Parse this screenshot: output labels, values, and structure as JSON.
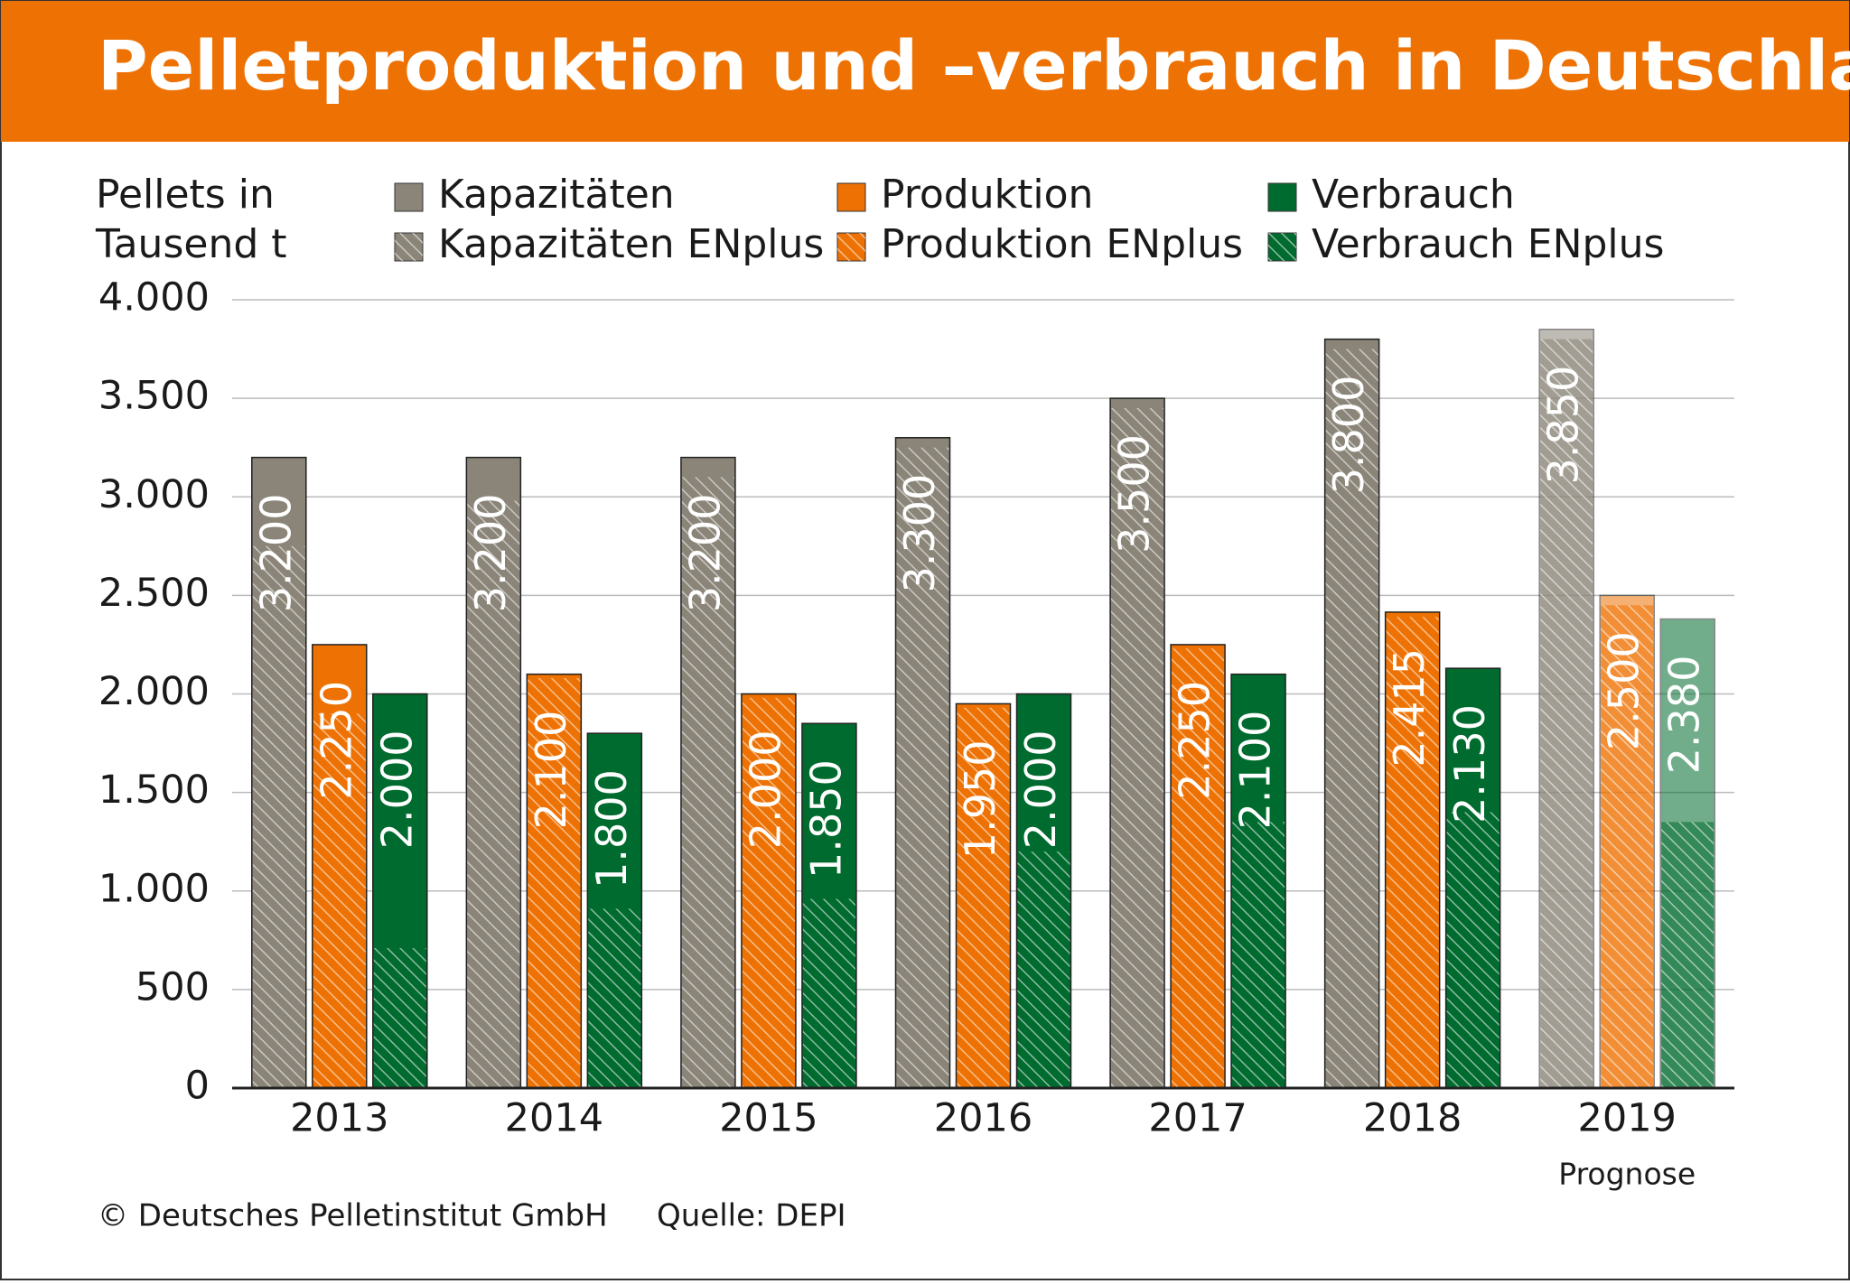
{
  "chart_data": {
    "type": "bar",
    "title": "Pelletproduktion und –verbrauch in Deutschland",
    "ylabel": [
      "Pellets in",
      "Tausend t"
    ],
    "categories": [
      "2013",
      "2014",
      "2015",
      "2016",
      "2017",
      "2018",
      "2019"
    ],
    "annotations": [
      {
        "category": "2019",
        "text": "Prognose"
      }
    ],
    "series": [
      {
        "name": "Kapazitäten",
        "color": "#8a8578",
        "values": [
          3200,
          3200,
          3200,
          3300,
          3500,
          3800,
          3850
        ],
        "value_labels": [
          "3.200",
          "3.200",
          "3.200",
          "3.300",
          "3.500",
          "3.800",
          "3.850"
        ]
      },
      {
        "name": "Kapazitäten ENplus",
        "color": "#8a8578",
        "hatch": true,
        "of": "Kapazitäten",
        "values": [
          2750,
          2980,
          3100,
          3250,
          3450,
          3750,
          3800
        ]
      },
      {
        "name": "Produktion",
        "color": "#ee7203",
        "values": [
          2250,
          2100,
          2000,
          1950,
          2250,
          2415,
          2500
        ],
        "value_labels": [
          "2.250",
          "2.100",
          "2.000",
          "1.950",
          "2.250",
          "2.415",
          "2.500"
        ]
      },
      {
        "name": "Produktion ENplus",
        "color": "#ee7203",
        "hatch": true,
        "of": "Produktion",
        "values": [
          1900,
          2080,
          1980,
          1930,
          2230,
          2390,
          2450
        ]
      },
      {
        "name": "Verbrauch",
        "color": "#006b2e",
        "values": [
          2000,
          1800,
          1850,
          2000,
          2100,
          2130,
          2380
        ],
        "value_labels": [
          "2.000",
          "1.800",
          "1.850",
          "2.000",
          "2.100",
          "2.130",
          "2.380"
        ]
      },
      {
        "name": "Verbrauch ENplus",
        "color": "#006b2e",
        "hatch": true,
        "of": "Verbrauch",
        "values": [
          710,
          910,
          960,
          1200,
          1350,
          1400,
          1350
        ]
      }
    ],
    "ylim": [
      0,
      4000
    ],
    "yticks": [
      0,
      500,
      {
        "value": 1000,
        "label": "1.000"
      },
      {
        "value": 1500,
        "label": "1.500"
      },
      {
        "value": 2000,
        "label": "2.000"
      },
      {
        "value": 2500,
        "label": "2.500"
      },
      {
        "value": 3000,
        "label": "3.000"
      },
      {
        "value": 3500,
        "label": "3.500"
      },
      {
        "value": 4000,
        "label": "4.000"
      }
    ],
    "grid": true,
    "footer": [
      "© Deutsches Pelletinstitut GmbH",
      "Quelle: DEPI"
    ]
  }
}
